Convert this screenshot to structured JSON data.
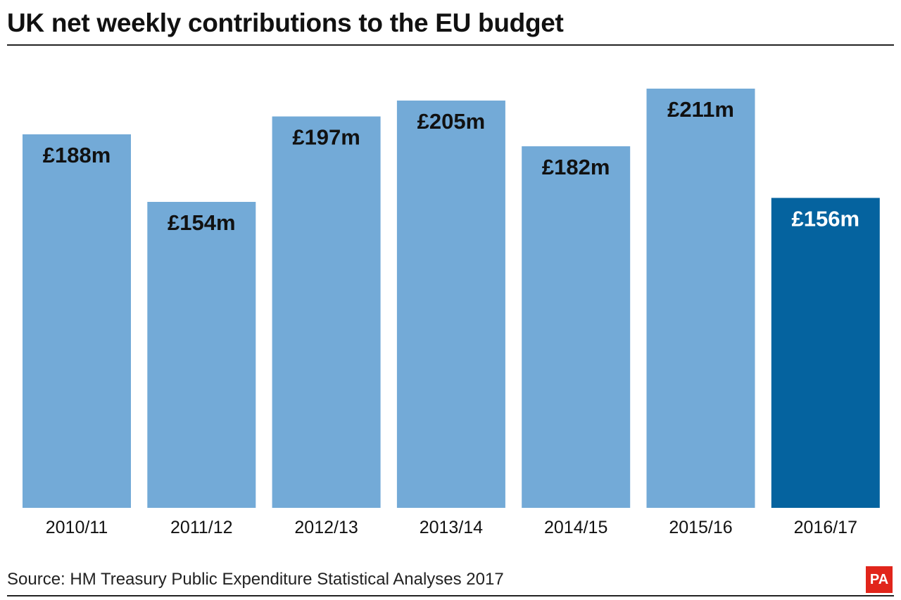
{
  "chart_data": {
    "type": "bar",
    "title": "UK net weekly contributions to the EU budget",
    "categories": [
      "2010/11",
      "2011/12",
      "2012/13",
      "2013/14",
      "2014/15",
      "2015/16",
      "2016/17"
    ],
    "values": [
      188,
      154,
      197,
      205,
      182,
      211,
      156
    ],
    "labels": [
      "£188m",
      "£154m",
      "£197m",
      "£205m",
      "£182m",
      "£211m",
      "£156m"
    ],
    "unit": "£m",
    "xlabel": "",
    "ylabel": "",
    "ylim": [
      0,
      211
    ],
    "grid": false,
    "legend": "none",
    "colors": {
      "default": "#73aad7",
      "highlight": "#05639f",
      "label_default": "#111111",
      "label_highlight": "#ffffff"
    },
    "highlight_index": 6
  },
  "source": "Source: HM Treasury Public Expenditure Statistical Analyses 2017",
  "logo": "PA"
}
